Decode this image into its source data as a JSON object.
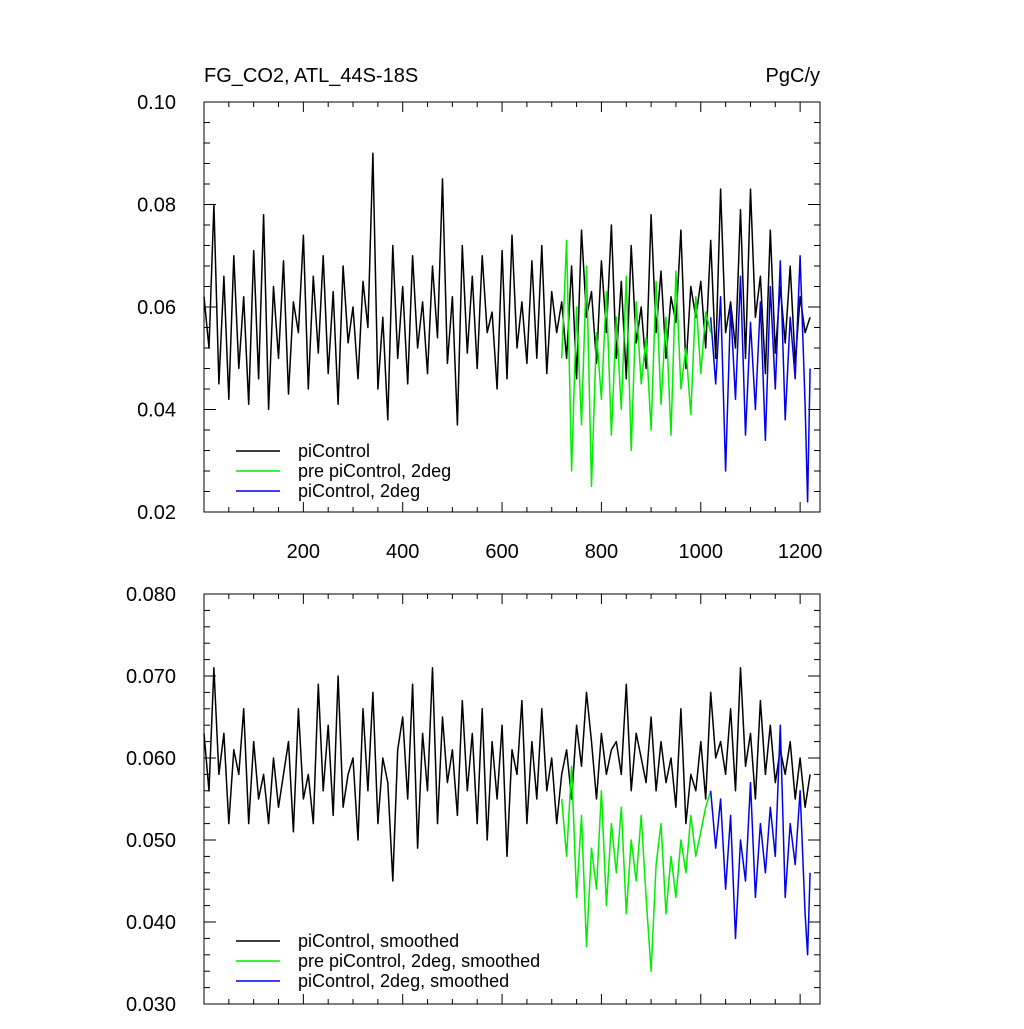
{
  "chart_data": [
    {
      "type": "line",
      "title": "FG_CO2, ATL_44S-18S",
      "units": "PgC/y",
      "xlim": [
        0,
        1240
      ],
      "ylim": [
        0.02,
        0.1
      ],
      "x_ticks": [
        200,
        400,
        600,
        800,
        1000,
        1200
      ],
      "x_tick_labels": [
        "200",
        "400",
        "600",
        "800",
        "1000",
        "1200"
      ],
      "y_ticks": [
        0.02,
        0.04,
        0.06,
        0.08,
        0.1
      ],
      "y_tick_labels": [
        "0.02",
        "0.04",
        "0.06",
        "0.08",
        "0.10"
      ],
      "legend_position": "bottom-left",
      "series": [
        {
          "name": "piControl",
          "color": "#000000",
          "x": [
            0,
            10,
            20,
            30,
            40,
            50,
            60,
            70,
            80,
            90,
            100,
            110,
            120,
            130,
            140,
            150,
            160,
            170,
            180,
            190,
            200,
            210,
            220,
            230,
            240,
            250,
            260,
            270,
            280,
            290,
            300,
            310,
            320,
            330,
            340,
            350,
            360,
            370,
            380,
            390,
            400,
            410,
            420,
            430,
            440,
            450,
            460,
            470,
            480,
            490,
            500,
            510,
            520,
            530,
            540,
            550,
            560,
            570,
            580,
            590,
            600,
            610,
            620,
            630,
            640,
            650,
            660,
            670,
            680,
            690,
            700,
            710,
            720,
            730,
            740,
            750,
            760,
            770,
            780,
            790,
            800,
            810,
            820,
            830,
            840,
            850,
            860,
            870,
            880,
            890,
            900,
            910,
            920,
            930,
            940,
            950,
            960,
            970,
            980,
            990,
            1000,
            1010,
            1020,
            1030,
            1040,
            1050,
            1060,
            1070,
            1080,
            1090,
            1100,
            1110,
            1120,
            1130,
            1140,
            1150,
            1160,
            1170,
            1180,
            1190,
            1200,
            1210,
            1220
          ],
          "y": [
            0.062,
            0.052,
            0.08,
            0.045,
            0.066,
            0.042,
            0.07,
            0.048,
            0.062,
            0.041,
            0.071,
            0.046,
            0.078,
            0.04,
            0.064,
            0.05,
            0.069,
            0.043,
            0.061,
            0.055,
            0.074,
            0.044,
            0.066,
            0.051,
            0.07,
            0.047,
            0.063,
            0.041,
            0.068,
            0.053,
            0.06,
            0.046,
            0.065,
            0.056,
            0.09,
            0.044,
            0.058,
            0.038,
            0.072,
            0.05,
            0.064,
            0.045,
            0.07,
            0.052,
            0.061,
            0.047,
            0.068,
            0.054,
            0.085,
            0.049,
            0.062,
            0.037,
            0.072,
            0.051,
            0.066,
            0.048,
            0.07,
            0.055,
            0.059,
            0.044,
            0.071,
            0.046,
            0.074,
            0.052,
            0.061,
            0.049,
            0.069,
            0.05,
            0.072,
            0.047,
            0.063,
            0.055,
            0.061,
            0.05,
            0.068,
            0.046,
            0.075,
            0.058,
            0.063,
            0.049,
            0.069,
            0.055,
            0.076,
            0.05,
            0.065,
            0.046,
            0.072,
            0.053,
            0.06,
            0.048,
            0.078,
            0.055,
            0.067,
            0.05,
            0.062,
            0.057,
            0.075,
            0.048,
            0.064,
            0.058,
            0.065,
            0.052,
            0.073,
            0.05,
            0.083,
            0.055,
            0.061,
            0.052,
            0.079,
            0.05,
            0.083,
            0.058,
            0.066,
            0.047,
            0.075,
            0.051,
            0.064,
            0.053,
            0.068,
            0.049,
            0.062,
            0.055,
            0.058
          ]
        },
        {
          "name": "pre piControl, 2deg",
          "color": "#00ee00",
          "x": [
            720,
            730,
            740,
            750,
            760,
            770,
            780,
            790,
            800,
            810,
            820,
            830,
            840,
            850,
            860,
            870,
            880,
            890,
            900,
            910,
            920,
            930,
            940,
            950,
            960,
            970,
            980,
            990,
            1000,
            1010,
            1020
          ],
          "y": [
            0.05,
            0.073,
            0.028,
            0.06,
            0.037,
            0.068,
            0.025,
            0.055,
            0.042,
            0.063,
            0.035,
            0.058,
            0.04,
            0.066,
            0.032,
            0.061,
            0.045,
            0.054,
            0.036,
            0.065,
            0.041,
            0.058,
            0.035,
            0.067,
            0.044,
            0.052,
            0.039,
            0.062,
            0.047,
            0.059,
            0.055
          ]
        },
        {
          "name": "piControl, 2deg",
          "color": "#0000ee",
          "x": [
            1020,
            1030,
            1040,
            1050,
            1060,
            1070,
            1080,
            1090,
            1100,
            1110,
            1120,
            1130,
            1140,
            1150,
            1160,
            1170,
            1180,
            1190,
            1200,
            1210,
            1215,
            1220
          ],
          "y": [
            0.058,
            0.045,
            0.062,
            0.028,
            0.06,
            0.042,
            0.066,
            0.035,
            0.057,
            0.04,
            0.061,
            0.034,
            0.064,
            0.044,
            0.069,
            0.038,
            0.058,
            0.046,
            0.07,
            0.041,
            0.022,
            0.048
          ]
        }
      ]
    },
    {
      "type": "line",
      "xlim": [
        0,
        1240
      ],
      "ylim": [
        0.03,
        0.08
      ],
      "x_ticks": [
        200,
        400,
        600,
        800,
        1000,
        1200
      ],
      "y_ticks": [
        0.03,
        0.04,
        0.05,
        0.06,
        0.07,
        0.08
      ],
      "y_tick_labels": [
        "0.030",
        "0.040",
        "0.050",
        "0.060",
        "0.070",
        "0.080"
      ],
      "legend_position": "bottom-left",
      "series": [
        {
          "name": "piControl, smoothed",
          "color": "#000000",
          "x": [
            0,
            10,
            20,
            30,
            40,
            50,
            60,
            70,
            80,
            90,
            100,
            110,
            120,
            130,
            140,
            150,
            160,
            170,
            180,
            190,
            200,
            210,
            220,
            230,
            240,
            250,
            260,
            270,
            280,
            290,
            300,
            310,
            320,
            330,
            340,
            350,
            360,
            370,
            380,
            390,
            400,
            410,
            420,
            430,
            440,
            450,
            460,
            470,
            480,
            490,
            500,
            510,
            520,
            530,
            540,
            550,
            560,
            570,
            580,
            590,
            600,
            610,
            620,
            630,
            640,
            650,
            660,
            670,
            680,
            690,
            700,
            710,
            720,
            730,
            740,
            750,
            760,
            770,
            780,
            790,
            800,
            810,
            820,
            830,
            840,
            850,
            860,
            870,
            880,
            890,
            900,
            910,
            920,
            930,
            940,
            950,
            960,
            970,
            980,
            990,
            1000,
            1010,
            1020,
            1030,
            1040,
            1050,
            1060,
            1070,
            1080,
            1090,
            1100,
            1110,
            1120,
            1130,
            1140,
            1150,
            1160,
            1170,
            1180,
            1190,
            1200,
            1210,
            1220
          ],
          "y": [
            0.063,
            0.056,
            0.071,
            0.058,
            0.063,
            0.052,
            0.061,
            0.058,
            0.066,
            0.052,
            0.062,
            0.055,
            0.058,
            0.052,
            0.06,
            0.054,
            0.058,
            0.062,
            0.051,
            0.066,
            0.055,
            0.058,
            0.052,
            0.069,
            0.056,
            0.064,
            0.053,
            0.07,
            0.054,
            0.058,
            0.06,
            0.05,
            0.066,
            0.056,
            0.068,
            0.052,
            0.06,
            0.057,
            0.045,
            0.061,
            0.065,
            0.055,
            0.069,
            0.049,
            0.063,
            0.056,
            0.071,
            0.052,
            0.065,
            0.057,
            0.061,
            0.053,
            0.067,
            0.056,
            0.063,
            0.052,
            0.066,
            0.05,
            0.062,
            0.055,
            0.064,
            0.048,
            0.061,
            0.058,
            0.067,
            0.052,
            0.062,
            0.055,
            0.066,
            0.056,
            0.06,
            0.052,
            0.058,
            0.061,
            0.055,
            0.064,
            0.059,
            0.068,
            0.062,
            0.055,
            0.063,
            0.058,
            0.061,
            0.062,
            0.058,
            0.069,
            0.056,
            0.063,
            0.06,
            0.057,
            0.065,
            0.056,
            0.062,
            0.057,
            0.06,
            0.054,
            0.066,
            0.052,
            0.058,
            0.056,
            0.062,
            0.055,
            0.068,
            0.06,
            0.062,
            0.058,
            0.066,
            0.056,
            0.071,
            0.059,
            0.063,
            0.055,
            0.067,
            0.058,
            0.064,
            0.057,
            0.061,
            0.058,
            0.062,
            0.055,
            0.06,
            0.054,
            0.058
          ]
        },
        {
          "name": "pre piControl, 2deg, smoothed",
          "color": "#00ee00",
          "x": [
            720,
            730,
            740,
            750,
            760,
            770,
            780,
            790,
            800,
            810,
            820,
            830,
            840,
            850,
            860,
            870,
            880,
            890,
            900,
            910,
            920,
            930,
            940,
            950,
            960,
            970,
            980,
            990,
            1000,
            1010,
            1020
          ],
          "y": [
            0.055,
            0.048,
            0.059,
            0.043,
            0.053,
            0.037,
            0.049,
            0.044,
            0.056,
            0.042,
            0.052,
            0.046,
            0.054,
            0.041,
            0.05,
            0.045,
            0.053,
            0.043,
            0.034,
            0.047,
            0.052,
            0.041,
            0.048,
            0.043,
            0.05,
            0.046,
            0.053,
            0.048,
            0.051,
            0.054,
            0.056
          ]
        },
        {
          "name": "piControl, 2deg, smoothed",
          "color": "#0000ee",
          "x": [
            1020,
            1030,
            1040,
            1050,
            1060,
            1070,
            1080,
            1090,
            1100,
            1110,
            1120,
            1130,
            1140,
            1150,
            1160,
            1170,
            1180,
            1190,
            1200,
            1210,
            1215,
            1220
          ],
          "y": [
            0.056,
            0.049,
            0.055,
            0.044,
            0.053,
            0.038,
            0.05,
            0.045,
            0.057,
            0.043,
            0.052,
            0.046,
            0.054,
            0.048,
            0.064,
            0.043,
            0.052,
            0.047,
            0.056,
            0.041,
            0.036,
            0.046
          ]
        }
      ]
    }
  ]
}
